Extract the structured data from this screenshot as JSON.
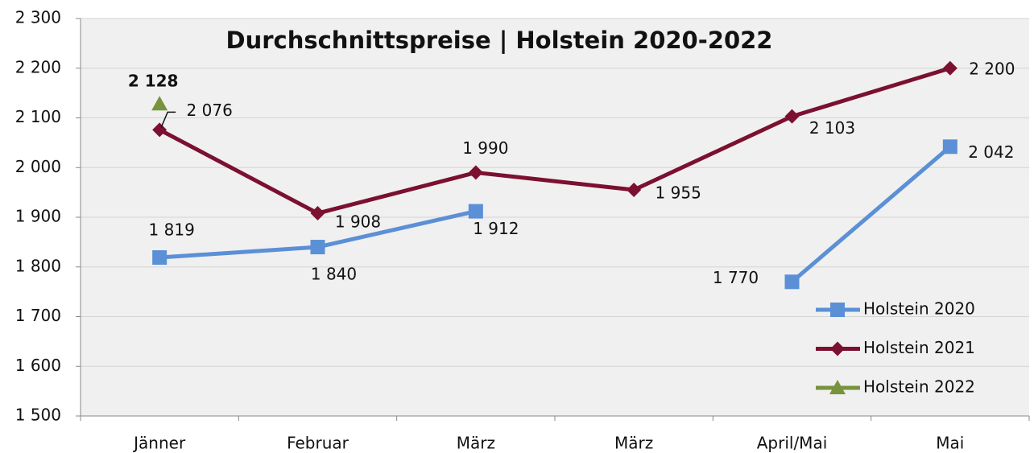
{
  "chart_data": {
    "type": "line",
    "title": "Durchschnittspreise | Holstein 2020-2022",
    "categories": [
      "Jänner",
      "Februar",
      "März",
      "März",
      "April/Mai",
      "Mai"
    ],
    "series": [
      {
        "name": "Holstein 2020",
        "color": "#5b8fd6",
        "marker": "square",
        "values": [
          1819,
          1840,
          1912,
          null,
          1770,
          2042
        ],
        "value_labels": [
          "1 819",
          "1 840",
          "1 912",
          null,
          "1 770",
          "2 042"
        ]
      },
      {
        "name": "Holstein 2021",
        "color": "#7b1030",
        "marker": "diamond",
        "values": [
          2076,
          1908,
          1990,
          1955,
          2103,
          2200
        ],
        "value_labels": [
          "2 076",
          "1 908",
          "1 990",
          "1 955",
          "2 103",
          "2 200"
        ]
      },
      {
        "name": "Holstein 2022",
        "color": "#77933c",
        "marker": "triangle",
        "values": [
          2128,
          null,
          null,
          null,
          null,
          null
        ],
        "value_labels": [
          "2 128",
          null,
          null,
          null,
          null,
          null
        ]
      }
    ],
    "ylim": [
      1500,
      2300
    ],
    "yticks": [
      {
        "value": 1500,
        "label": "1 500"
      },
      {
        "value": 1600,
        "label": "1 600"
      },
      {
        "value": 1700,
        "label": "1 700"
      },
      {
        "value": 1800,
        "label": "1 800"
      },
      {
        "value": 1900,
        "label": "1 900"
      },
      {
        "value": 2000,
        "label": "2 000"
      },
      {
        "value": 2100,
        "label": "2 100"
      },
      {
        "value": 2200,
        "label": "2 200"
      },
      {
        "value": 2300,
        "label": "2 300"
      }
    ],
    "grid": true,
    "legend": "right"
  }
}
